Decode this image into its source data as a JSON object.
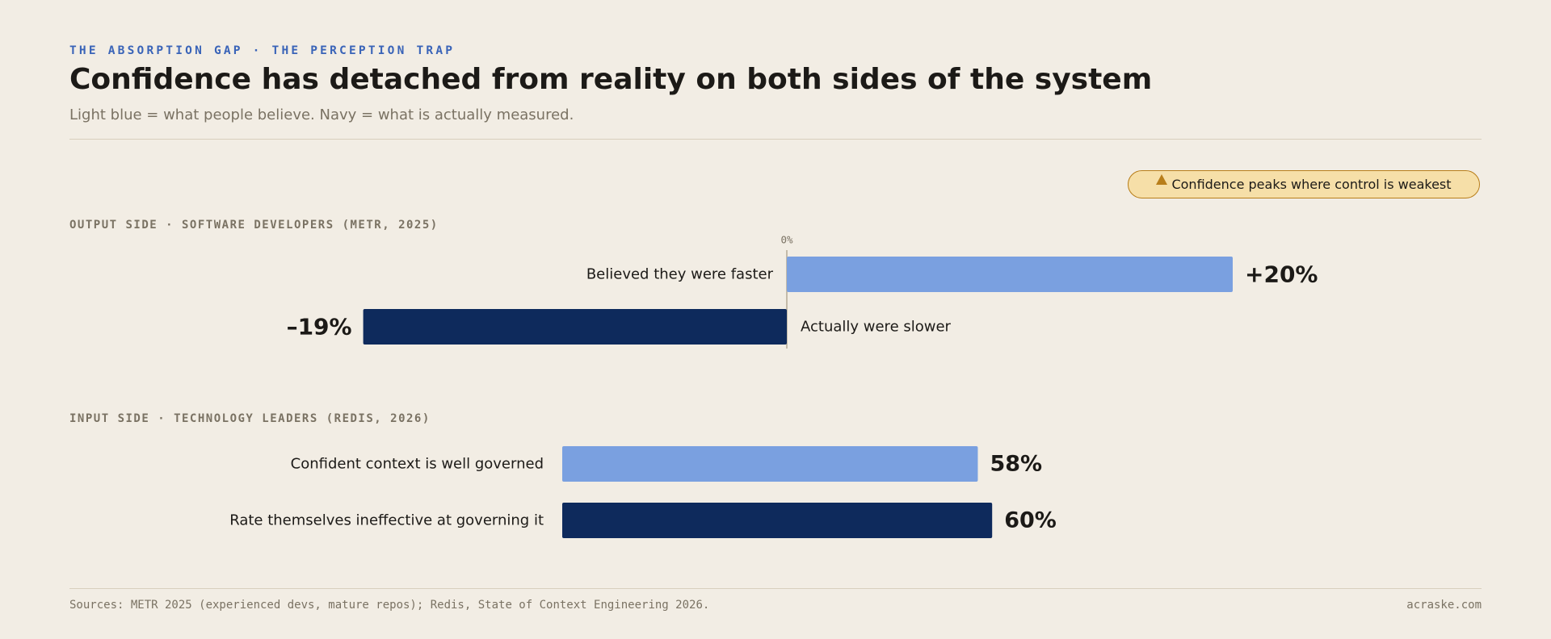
{
  "header": {
    "eyebrow": "THE ABSORPTION GAP · THE PERCEPTION TRAP",
    "title": "Confidence has detached from reality on both sides of the system",
    "subtitle": "Light blue = what people believe. Navy = what is actually measured."
  },
  "callout": {
    "icon": "warning-triangle-icon",
    "text": "Confidence peaks where control is weakest"
  },
  "colors": {
    "believed": "#7aa0e0",
    "measured": "#0e2a5c",
    "accent": "#3a64b8",
    "callout_bg": "#f6dfa8",
    "callout_border": "#b87e1a",
    "background": "#f2ede4"
  },
  "chart_data": [
    {
      "type": "bar",
      "orientation": "horizontal-diverging",
      "section_label": "OUTPUT SIDE · SOFTWARE DEVELOPERS (METR, 2025)",
      "zero_label": "0%",
      "unit": "%",
      "bars": [
        {
          "label": "Believed they were faster",
          "value": 20,
          "display": "+20%",
          "kind": "believed"
        },
        {
          "label": "Actually were slower",
          "value": -19,
          "display": "–19%",
          "kind": "measured"
        }
      ]
    },
    {
      "type": "bar",
      "orientation": "horizontal",
      "section_label": "INPUT SIDE · TECHNOLOGY LEADERS (REDIS, 2026)",
      "unit": "%",
      "bars": [
        {
          "label": "Confident context is well governed",
          "value": 58,
          "display": "58%",
          "kind": "believed"
        },
        {
          "label": "Rate themselves ineffective at governing it",
          "value": 60,
          "display": "60%",
          "kind": "measured"
        }
      ]
    }
  ],
  "footer": {
    "sources": "Sources: METR 2025 (experienced devs, mature repos); Redis, State of Context Engineering 2026.",
    "credit": "acraske.com"
  }
}
